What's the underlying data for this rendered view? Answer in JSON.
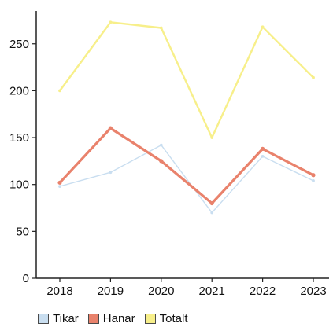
{
  "chart_data": {
    "type": "line",
    "categories": [
      "2018",
      "2019",
      "2020",
      "2021",
      "2022",
      "2023"
    ],
    "ylim": [
      0,
      285
    ],
    "yticks": [
      0,
      50,
      100,
      150,
      200,
      250
    ],
    "grid": false,
    "legend_position": "bottom-left",
    "series": [
      {
        "name": "Tikar",
        "color": "#c9def0",
        "values": [
          98,
          113,
          142,
          70,
          130,
          104
        ]
      },
      {
        "name": "Hanar",
        "color": "#e9826c",
        "values": [
          102,
          160,
          125,
          80,
          138,
          110
        ]
      },
      {
        "name": "Totalt",
        "color": "#f7ef8a",
        "values": [
          200,
          273,
          267,
          150,
          268,
          214
        ]
      }
    ]
  }
}
